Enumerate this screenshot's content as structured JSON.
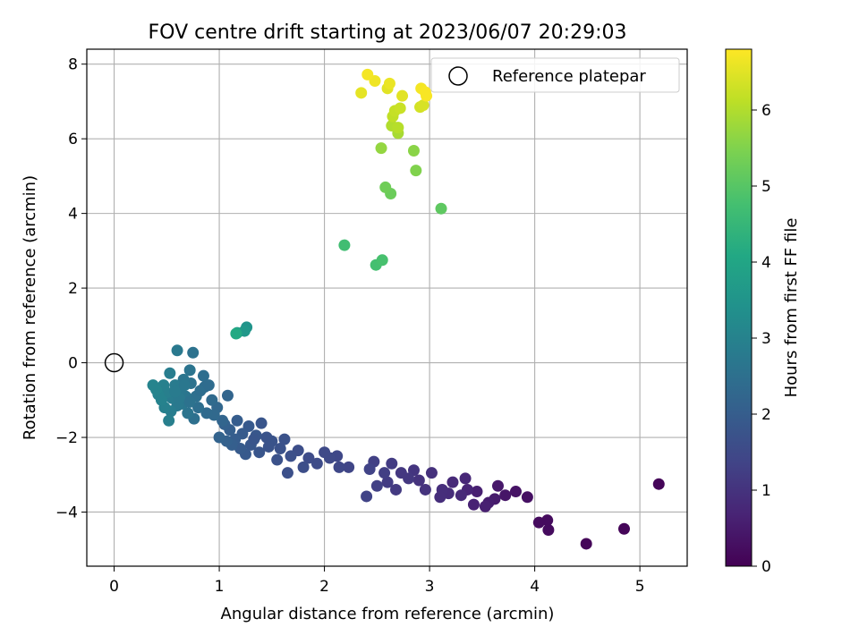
{
  "chart_data": {
    "type": "scatter",
    "title": "FOV centre drift starting at 2023/06/07 20:29:03",
    "xlabel": "Angular distance from reference (arcmin)",
    "ylabel": "Rotation from reference (arcmin)",
    "xlim": [
      -0.26,
      5.45
    ],
    "ylim": [
      -5.45,
      8.4
    ],
    "xticks": [
      0,
      1,
      2,
      3,
      4,
      5
    ],
    "yticks": [
      -4,
      -2,
      0,
      2,
      4,
      6,
      8
    ],
    "grid": true,
    "legend": {
      "position": "top-right",
      "entries": [
        "Reference platepar"
      ]
    },
    "reference_point": {
      "x": 0,
      "y": 0
    },
    "colorbar": {
      "label": "Hours from first FF file",
      "range": [
        0,
        6.8
      ],
      "ticks": [
        0,
        1,
        2,
        3,
        4,
        5,
        6
      ],
      "colormap": "viridis"
    },
    "points": [
      {
        "x": 5.18,
        "y": -3.25,
        "t": 0.1
      },
      {
        "x": 4.85,
        "y": -4.45,
        "t": 0.1
      },
      {
        "x": 4.49,
        "y": -4.85,
        "t": 0.1
      },
      {
        "x": 4.13,
        "y": -4.48,
        "t": 0.2
      },
      {
        "x": 4.12,
        "y": -4.22,
        "t": 0.2
      },
      {
        "x": 4.04,
        "y": -4.28,
        "t": 0.2
      },
      {
        "x": 3.93,
        "y": -3.6,
        "t": 0.3
      },
      {
        "x": 3.82,
        "y": -3.45,
        "t": 0.35
      },
      {
        "x": 3.72,
        "y": -3.55,
        "t": 0.4
      },
      {
        "x": 3.65,
        "y": -3.3,
        "t": 0.45
      },
      {
        "x": 3.62,
        "y": -3.65,
        "t": 0.5
      },
      {
        "x": 3.56,
        "y": -3.75,
        "t": 0.55
      },
      {
        "x": 3.53,
        "y": -3.85,
        "t": 0.6
      },
      {
        "x": 3.45,
        "y": -3.45,
        "t": 0.6
      },
      {
        "x": 3.42,
        "y": -3.8,
        "t": 0.65
      },
      {
        "x": 3.36,
        "y": -3.4,
        "t": 0.7
      },
      {
        "x": 3.34,
        "y": -3.1,
        "t": 0.75
      },
      {
        "x": 3.3,
        "y": -3.55,
        "t": 0.8
      },
      {
        "x": 3.22,
        "y": -3.2,
        "t": 0.8
      },
      {
        "x": 3.18,
        "y": -3.5,
        "t": 0.85
      },
      {
        "x": 3.12,
        "y": -3.4,
        "t": 0.9
      },
      {
        "x": 3.1,
        "y": -3.6,
        "t": 0.9
      },
      {
        "x": 3.02,
        "y": -2.95,
        "t": 0.95
      },
      {
        "x": 2.96,
        "y": -3.4,
        "t": 1.0
      },
      {
        "x": 2.9,
        "y": -3.15,
        "t": 1.0
      },
      {
        "x": 2.85,
        "y": -2.88,
        "t": 1.05
      },
      {
        "x": 2.8,
        "y": -3.1,
        "t": 1.1
      },
      {
        "x": 2.73,
        "y": -2.95,
        "t": 1.1
      },
      {
        "x": 2.68,
        "y": -3.4,
        "t": 1.15
      },
      {
        "x": 2.64,
        "y": -2.7,
        "t": 1.2
      },
      {
        "x": 2.6,
        "y": -3.2,
        "t": 1.2
      },
      {
        "x": 2.57,
        "y": -2.95,
        "t": 1.25
      },
      {
        "x": 2.5,
        "y": -3.3,
        "t": 1.3
      },
      {
        "x": 2.47,
        "y": -2.65,
        "t": 1.3
      },
      {
        "x": 2.43,
        "y": -2.85,
        "t": 1.35
      },
      {
        "x": 2.4,
        "y": -3.58,
        "t": 1.35
      },
      {
        "x": 2.23,
        "y": -2.8,
        "t": 1.4
      },
      {
        "x": 2.14,
        "y": -2.8,
        "t": 1.45
      },
      {
        "x": 2.12,
        "y": -2.5,
        "t": 1.45
      },
      {
        "x": 2.05,
        "y": -2.55,
        "t": 1.5
      },
      {
        "x": 2.0,
        "y": -2.4,
        "t": 1.5
      },
      {
        "x": 1.93,
        "y": -2.7,
        "t": 1.55
      },
      {
        "x": 1.85,
        "y": -2.55,
        "t": 1.55
      },
      {
        "x": 1.8,
        "y": -2.8,
        "t": 1.6
      },
      {
        "x": 1.75,
        "y": -2.35,
        "t": 1.6
      },
      {
        "x": 1.68,
        "y": -2.5,
        "t": 1.65
      },
      {
        "x": 1.65,
        "y": -2.95,
        "t": 1.65
      },
      {
        "x": 1.55,
        "y": -2.6,
        "t": 1.7
      },
      {
        "x": 1.58,
        "y": -2.3,
        "t": 1.7
      },
      {
        "x": 1.5,
        "y": -2.1,
        "t": 1.75
      },
      {
        "x": 1.47,
        "y": -2.25,
        "t": 1.75
      },
      {
        "x": 1.4,
        "y": -1.62,
        "t": 1.8
      },
      {
        "x": 1.38,
        "y": -2.4,
        "t": 1.8
      },
      {
        "x": 1.35,
        "y": -1.95,
        "t": 1.85
      },
      {
        "x": 1.3,
        "y": -2.2,
        "t": 1.85
      },
      {
        "x": 1.28,
        "y": -1.7,
        "t": 1.9
      },
      {
        "x": 1.25,
        "y": -2.45,
        "t": 1.9
      },
      {
        "x": 1.22,
        "y": -1.9,
        "t": 1.95
      },
      {
        "x": 1.2,
        "y": -2.3,
        "t": 1.95
      },
      {
        "x": 1.17,
        "y": -1.55,
        "t": 2.0
      },
      {
        "x": 1.15,
        "y": -2.05,
        "t": 2.0
      },
      {
        "x": 1.12,
        "y": -2.2,
        "t": 2.05
      },
      {
        "x": 1.1,
        "y": -1.8,
        "t": 2.05
      },
      {
        "x": 1.07,
        "y": -2.1,
        "t": 2.1
      },
      {
        "x": 1.05,
        "y": -1.65,
        "t": 2.1
      },
      {
        "x": 1.0,
        "y": -2.0,
        "t": 2.15
      },
      {
        "x": 1.62,
        "y": -2.05,
        "t": 1.7
      },
      {
        "x": 1.45,
        "y": -2.0,
        "t": 1.75
      },
      {
        "x": 1.33,
        "y": -2.05,
        "t": 1.8
      },
      {
        "x": 1.08,
        "y": -0.88,
        "t": 2.2
      },
      {
        "x": 1.03,
        "y": -1.55,
        "t": 2.2
      },
      {
        "x": 0.98,
        "y": -1.2,
        "t": 2.25
      },
      {
        "x": 0.95,
        "y": -1.4,
        "t": 2.3
      },
      {
        "x": 0.93,
        "y": -1.0,
        "t": 2.35
      },
      {
        "x": 0.88,
        "y": -1.35,
        "t": 2.35
      },
      {
        "x": 0.86,
        "y": -0.65,
        "t": 2.4
      },
      {
        "x": 0.85,
        "y": -0.35,
        "t": 2.45
      },
      {
        "x": 0.8,
        "y": -1.2,
        "t": 2.45
      },
      {
        "x": 0.78,
        "y": -0.9,
        "t": 2.5
      },
      {
        "x": 0.76,
        "y": -1.5,
        "t": 2.5
      },
      {
        "x": 0.75,
        "y": 0.27,
        "t": 2.55
      },
      {
        "x": 0.73,
        "y": -0.55,
        "t": 2.55
      },
      {
        "x": 0.72,
        "y": -0.2,
        "t": 2.6
      },
      {
        "x": 0.7,
        "y": -1.35,
        "t": 2.6
      },
      {
        "x": 0.68,
        "y": -0.9,
        "t": 2.65
      },
      {
        "x": 0.66,
        "y": -0.45,
        "t": 2.65
      },
      {
        "x": 0.65,
        "y": -1.1,
        "t": 2.7
      },
      {
        "x": 0.63,
        "y": -0.75,
        "t": 2.7
      },
      {
        "x": 0.6,
        "y": 0.33,
        "t": 2.75
      },
      {
        "x": 0.6,
        "y": -1.15,
        "t": 2.75
      },
      {
        "x": 0.58,
        "y": -0.6,
        "t": 2.8
      },
      {
        "x": 0.55,
        "y": -0.95,
        "t": 2.8
      },
      {
        "x": 0.54,
        "y": -1.3,
        "t": 2.85
      },
      {
        "x": 0.53,
        "y": -0.28,
        "t": 2.85
      },
      {
        "x": 0.52,
        "y": -1.55,
        "t": 2.9
      },
      {
        "x": 0.5,
        "y": -0.8,
        "t": 2.9
      },
      {
        "x": 0.48,
        "y": -1.2,
        "t": 2.95
      },
      {
        "x": 0.47,
        "y": -0.6,
        "t": 2.95
      },
      {
        "x": 0.45,
        "y": -1.0,
        "t": 3.0
      },
      {
        "x": 0.42,
        "y": -0.85,
        "t": 3.0
      },
      {
        "x": 0.4,
        "y": -0.72,
        "t": 3.05
      },
      {
        "x": 0.37,
        "y": -0.6,
        "t": 3.05
      },
      {
        "x": 0.62,
        "y": -0.95,
        "t": 2.75
      },
      {
        "x": 0.67,
        "y": -0.6,
        "t": 2.7
      },
      {
        "x": 0.82,
        "y": -0.75,
        "t": 2.45
      },
      {
        "x": 0.9,
        "y": -0.6,
        "t": 2.4
      },
      {
        "x": 0.72,
        "y": -1.05,
        "t": 2.55
      },
      {
        "x": 0.58,
        "y": -0.78,
        "t": 2.8
      },
      {
        "x": 1.26,
        "y": 0.95,
        "t": 3.5
      },
      {
        "x": 1.24,
        "y": 0.85,
        "t": 3.6
      },
      {
        "x": 1.17,
        "y": 0.8,
        "t": 3.7
      },
      {
        "x": 1.16,
        "y": 0.78,
        "t": 4.1
      },
      {
        "x": 2.19,
        "y": 3.15,
        "t": 4.7
      },
      {
        "x": 2.49,
        "y": 2.62,
        "t": 4.75
      },
      {
        "x": 2.55,
        "y": 2.75,
        "t": 4.8
      },
      {
        "x": 3.11,
        "y": 4.13,
        "t": 5.1
      },
      {
        "x": 2.63,
        "y": 4.53,
        "t": 5.25
      },
      {
        "x": 2.58,
        "y": 4.7,
        "t": 5.3
      },
      {
        "x": 2.87,
        "y": 5.15,
        "t": 5.5
      },
      {
        "x": 2.85,
        "y": 5.68,
        "t": 5.6
      },
      {
        "x": 2.54,
        "y": 5.75,
        "t": 5.7
      },
      {
        "x": 2.7,
        "y": 6.15,
        "t": 5.9
      },
      {
        "x": 2.64,
        "y": 6.35,
        "t": 6.0
      },
      {
        "x": 2.7,
        "y": 6.3,
        "t": 6.05
      },
      {
        "x": 2.65,
        "y": 6.6,
        "t": 6.15
      },
      {
        "x": 2.67,
        "y": 6.75,
        "t": 6.2
      },
      {
        "x": 2.72,
        "y": 6.82,
        "t": 6.25
      },
      {
        "x": 2.91,
        "y": 6.85,
        "t": 6.35
      },
      {
        "x": 2.94,
        "y": 6.9,
        "t": 6.4
      },
      {
        "x": 2.6,
        "y": 7.35,
        "t": 6.5
      },
      {
        "x": 2.74,
        "y": 7.15,
        "t": 6.5
      },
      {
        "x": 2.35,
        "y": 7.23,
        "t": 6.55
      },
      {
        "x": 2.62,
        "y": 7.48,
        "t": 6.6
      },
      {
        "x": 2.48,
        "y": 7.55,
        "t": 6.65
      },
      {
        "x": 2.41,
        "y": 7.72,
        "t": 6.7
      },
      {
        "x": 2.92,
        "y": 7.35,
        "t": 6.7
      },
      {
        "x": 2.97,
        "y": 7.15,
        "t": 6.75
      },
      {
        "x": 2.96,
        "y": 7.25,
        "t": 6.75
      }
    ]
  }
}
